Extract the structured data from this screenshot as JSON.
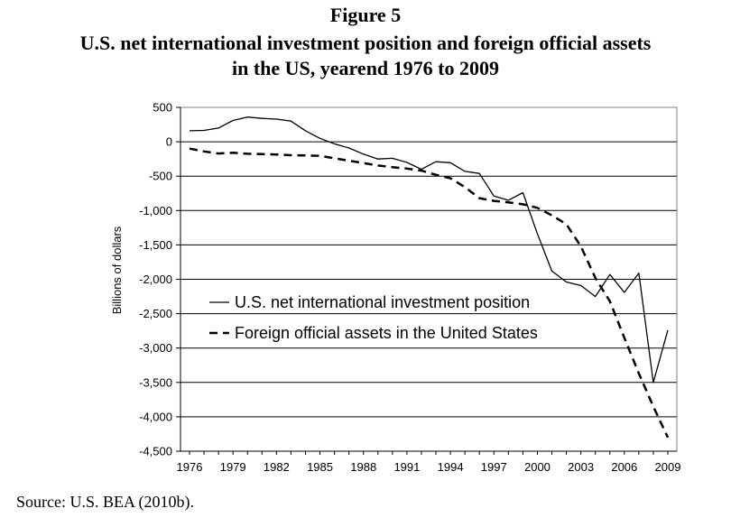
{
  "figure_label": "Figure 5",
  "title_line1": "U.S. net international investment position and foreign official assets",
  "title_line2": "in the US, yearend 1976 to 2009",
  "source": "Source: U.S. BEA (2010b).",
  "chart_data": {
    "type": "line",
    "title": "U.S. net international investment position and foreign official assets in the US, yearend 1976 to 2009",
    "xlabel": "",
    "ylabel": "Billions of dollars",
    "ylim": [
      -4500,
      500
    ],
    "yticks": [
      500,
      0,
      -500,
      -1000,
      -1500,
      -2000,
      -2500,
      -3000,
      -3500,
      -4000,
      -4500
    ],
    "ytick_labels": [
      "500",
      "0",
      "-500",
      "-1,000",
      "-1,500",
      "-2,000",
      "-2,500",
      "-3,000",
      "-3,500",
      "-4,000",
      "-4,500"
    ],
    "xlim": [
      1976,
      2009
    ],
    "xticks": [
      1976,
      1979,
      1982,
      1985,
      1988,
      1991,
      1994,
      1997,
      2000,
      2003,
      2006,
      2009
    ],
    "xtick_labels": [
      "1976",
      "1979",
      "1982",
      "1985",
      "1988",
      "1991",
      "1994",
      "1997",
      "2000",
      "2003",
      "2006",
      "2009"
    ],
    "grid": "horizontal",
    "legend_position": "lower-left",
    "x": [
      1976,
      1977,
      1978,
      1979,
      1980,
      1981,
      1982,
      1983,
      1984,
      1985,
      1986,
      1987,
      1988,
      1989,
      1990,
      1991,
      1992,
      1993,
      1994,
      1995,
      1996,
      1997,
      1998,
      1999,
      2000,
      2001,
      2002,
      2003,
      2004,
      2005,
      2006,
      2007,
      2008,
      2009
    ],
    "series": [
      {
        "name": "U.S. net international investment position",
        "style": "solid",
        "values": [
          160,
          165,
          200,
          310,
          360,
          340,
          330,
          300,
          160,
          50,
          -30,
          -90,
          -180,
          -250,
          -240,
          -300,
          -400,
          -290,
          -305,
          -430,
          -460,
          -790,
          -850,
          -740,
          -1340,
          -1880,
          -2040,
          -2090,
          -2250,
          -1930,
          -2190,
          -1910,
          -3500,
          -2740
        ]
      },
      {
        "name": "Foreign official assets in the United States",
        "style": "dashed",
        "values": [
          -100,
          -140,
          -170,
          -160,
          -175,
          -180,
          -185,
          -195,
          -200,
          -205,
          -240,
          -275,
          -310,
          -345,
          -370,
          -390,
          -420,
          -480,
          -530,
          -660,
          -820,
          -860,
          -880,
          -910,
          -960,
          -1070,
          -1200,
          -1520,
          -1980,
          -2320,
          -2850,
          -3370,
          -3850,
          -4300
        ]
      }
    ]
  }
}
